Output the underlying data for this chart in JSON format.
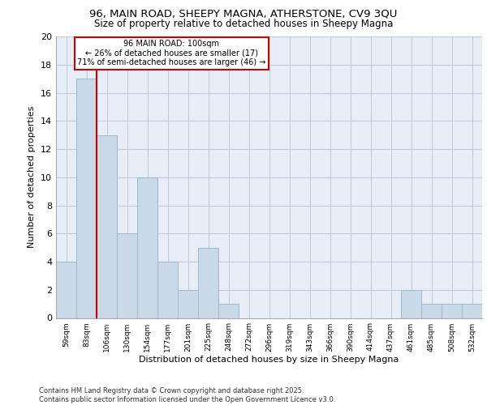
{
  "title1": "96, MAIN ROAD, SHEEPY MAGNA, ATHERSTONE, CV9 3QU",
  "title2": "Size of property relative to detached houses in Sheepy Magna",
  "xlabel": "Distribution of detached houses by size in Sheepy Magna",
  "ylabel": "Number of detached properties",
  "footer1": "Contains HM Land Registry data © Crown copyright and database right 2025.",
  "footer2": "Contains public sector information licensed under the Open Government Licence v3.0.",
  "bin_labels": [
    "59sqm",
    "83sqm",
    "106sqm",
    "130sqm",
    "154sqm",
    "177sqm",
    "201sqm",
    "225sqm",
    "248sqm",
    "272sqm",
    "296sqm",
    "319sqm",
    "343sqm",
    "366sqm",
    "390sqm",
    "414sqm",
    "437sqm",
    "461sqm",
    "485sqm",
    "508sqm",
    "532sqm"
  ],
  "bar_values": [
    4,
    17,
    13,
    6,
    10,
    4,
    2,
    5,
    1,
    0,
    0,
    0,
    0,
    0,
    0,
    0,
    0,
    2,
    1,
    1,
    1
  ],
  "bar_color": "#c9d9e8",
  "bar_edge_color": "#a0b8cc",
  "highlight_label": "96 MAIN ROAD: 100sqm",
  "annotation_line1": "← 26% of detached houses are smaller (17)",
  "annotation_line2": "71% of semi-detached houses are larger (46) →",
  "annotation_box_color": "#ffffff",
  "annotation_box_edge": "#cc0000",
  "vline_color": "#cc0000",
  "ylim": [
    0,
    20
  ],
  "yticks": [
    0,
    2,
    4,
    6,
    8,
    10,
    12,
    14,
    16,
    18,
    20
  ],
  "grid_color": "#c0c8d8",
  "background_color": "#e8eef8",
  "fig_bg": "#ffffff"
}
